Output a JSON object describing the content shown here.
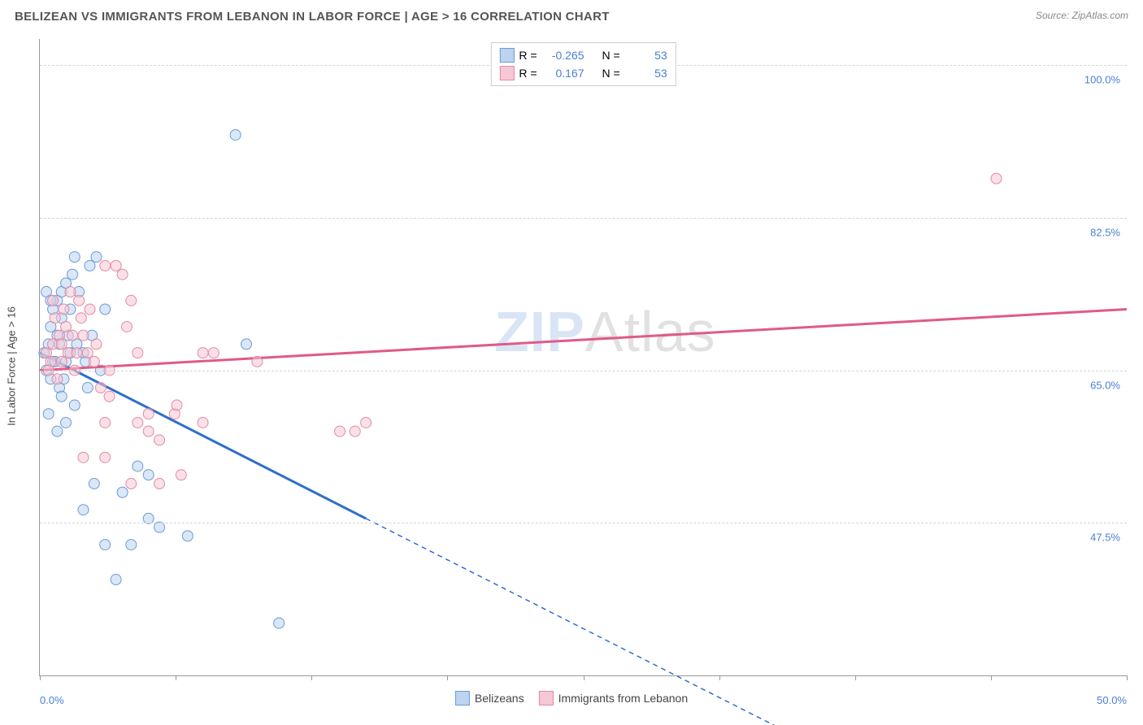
{
  "title": "BELIZEAN VS IMMIGRANTS FROM LEBANON IN LABOR FORCE | AGE > 16 CORRELATION CHART",
  "source": "Source: ZipAtlas.com",
  "yaxis_title": "In Labor Force | Age > 16",
  "watermark_part1": "ZIP",
  "watermark_part2": "Atlas",
  "chart": {
    "type": "scatter_with_trend",
    "background_color": "#ffffff",
    "grid_color": "#d5d5d5",
    "axis_color": "#999999",
    "label_color": "#4a7fd6",
    "xlim": [
      0,
      50
    ],
    "ylim": [
      30,
      103
    ],
    "x_ticks": [
      0,
      6.25,
      12.5,
      18.75,
      25,
      31.25,
      37.5,
      43.75,
      50
    ],
    "x_tick_labels": {
      "0": "0.0%",
      "50": "50.0%"
    },
    "y_gridlines": [
      47.5,
      65.0,
      82.5,
      100.0
    ],
    "y_labels": [
      "47.5%",
      "65.0%",
      "82.5%",
      "100.0%"
    ],
    "series": [
      {
        "key": "belizeans",
        "label": "Belizeans",
        "fill": "#bcd4f0",
        "stroke": "#6b9bd8",
        "line_stroke": "#2f6fc9",
        "R": "-0.265",
        "N": "53",
        "trend": {
          "x1": 0,
          "y1": 67,
          "x2_solid": 15,
          "y2_solid": 48,
          "x2_dash": 34,
          "y2_dash": 24
        },
        "points": [
          [
            0.2,
            67
          ],
          [
            0.4,
            68
          ],
          [
            0.6,
            66
          ],
          [
            0.5,
            70
          ],
          [
            0.8,
            69
          ],
          [
            0.3,
            65
          ],
          [
            0.5,
            64
          ],
          [
            1.0,
            71
          ],
          [
            1.2,
            66
          ],
          [
            0.6,
            72
          ],
          [
            0.8,
            73
          ],
          [
            1.4,
            72
          ],
          [
            1.0,
            74
          ],
          [
            1.2,
            75
          ],
          [
            1.6,
            78
          ],
          [
            1.5,
            76
          ],
          [
            0.9,
            63
          ],
          [
            1.0,
            62
          ],
          [
            2.0,
            67
          ],
          [
            0.4,
            60
          ],
          [
            1.6,
            61
          ],
          [
            2.2,
            63
          ],
          [
            2.8,
            65
          ],
          [
            0.8,
            58
          ],
          [
            1.2,
            59
          ],
          [
            2.6,
            78
          ],
          [
            2.3,
            77
          ],
          [
            3.0,
            72
          ],
          [
            2.0,
            49
          ],
          [
            2.5,
            52
          ],
          [
            3.8,
            51
          ],
          [
            3.0,
            45
          ],
          [
            4.2,
            45
          ],
          [
            5.0,
            48
          ],
          [
            5.5,
            47
          ],
          [
            3.5,
            41
          ],
          [
            6.8,
            46
          ],
          [
            4.5,
            54
          ],
          [
            5.0,
            53
          ],
          [
            9.5,
            68
          ],
          [
            9.0,
            92
          ],
          [
            11.0,
            36
          ],
          [
            0.3,
            74
          ],
          [
            0.5,
            73
          ],
          [
            1.8,
            74
          ],
          [
            1.1,
            64
          ],
          [
            1.4,
            67
          ],
          [
            0.7,
            66
          ],
          [
            0.9,
            68
          ],
          [
            1.3,
            69
          ],
          [
            1.7,
            68
          ],
          [
            2.1,
            66
          ],
          [
            2.4,
            69
          ]
        ]
      },
      {
        "key": "lebanon",
        "label": "Immigrants from Lebanon",
        "fill": "#f6c7d4",
        "stroke": "#e48aa4",
        "line_stroke": "#e05a88",
        "R": "0.167",
        "N": "53",
        "trend": {
          "x1": 0,
          "y1": 65,
          "x2_solid": 50,
          "y2_solid": 72
        },
        "points": [
          [
            0.3,
            67
          ],
          [
            0.6,
            68
          ],
          [
            0.5,
            66
          ],
          [
            0.9,
            69
          ],
          [
            0.7,
            71
          ],
          [
            1.0,
            68
          ],
          [
            1.3,
            67
          ],
          [
            0.4,
            65
          ],
          [
            0.8,
            64
          ],
          [
            1.2,
            70
          ],
          [
            1.5,
            69
          ],
          [
            1.1,
            72
          ],
          [
            1.8,
            73
          ],
          [
            2.0,
            69
          ],
          [
            2.2,
            67
          ],
          [
            2.5,
            66
          ],
          [
            1.6,
            65
          ],
          [
            3.2,
            65
          ],
          [
            3.0,
            77
          ],
          [
            3.5,
            77
          ],
          [
            3.8,
            76
          ],
          [
            4.2,
            73
          ],
          [
            4.0,
            70
          ],
          [
            4.5,
            67
          ],
          [
            2.8,
            63
          ],
          [
            3.2,
            62
          ],
          [
            3.0,
            59
          ],
          [
            4.5,
            59
          ],
          [
            5.0,
            60
          ],
          [
            5.0,
            58
          ],
          [
            5.5,
            57
          ],
          [
            6.2,
            60
          ],
          [
            6.3,
            61
          ],
          [
            7.5,
            59
          ],
          [
            4.2,
            52
          ],
          [
            5.5,
            52
          ],
          [
            6.5,
            53
          ],
          [
            3.0,
            55
          ],
          [
            2.0,
            55
          ],
          [
            7.5,
            67
          ],
          [
            8.0,
            67
          ],
          [
            10.0,
            66
          ],
          [
            13.8,
            58
          ],
          [
            14.5,
            58
          ],
          [
            15.0,
            59
          ],
          [
            44.0,
            87
          ],
          [
            1.4,
            74
          ],
          [
            0.6,
            73
          ],
          [
            1.9,
            71
          ],
          [
            2.3,
            72
          ],
          [
            1.0,
            66
          ],
          [
            1.7,
            67
          ],
          [
            2.6,
            68
          ]
        ]
      }
    ],
    "marker_radius": 6.5,
    "marker_opacity": 0.55,
    "line_width_solid": 3,
    "line_width_dash": 1.5
  },
  "legend_top_text": {
    "R_label": "R =",
    "N_label": "N ="
  }
}
